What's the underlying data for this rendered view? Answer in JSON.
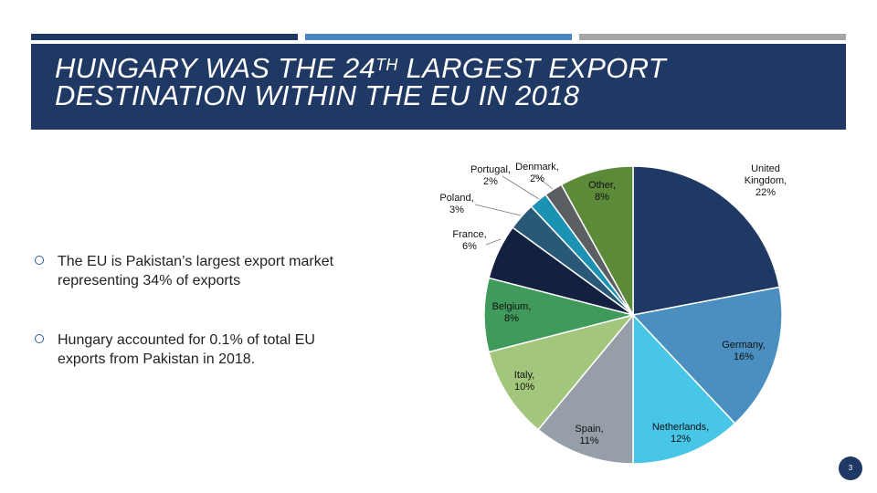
{
  "slide": {
    "title_part1": "HUNGARY WAS THE 24",
    "title_sup": "TH",
    "title_part2": " LARGEST EXPORT DESTINATION WITHIN THE EU IN 2018",
    "bullets": [
      "The EU is Pakistan’s largest export market representing 34% of exports",
      "Hungary accounted for 0.1% of total EU exports from Pakistan in 2018."
    ],
    "page_number": "3",
    "colors": {
      "band": "#1f3864",
      "bar1": "#1f3864",
      "bar2": "#4a86c5",
      "bar3": "#a6a6a6"
    }
  },
  "chart_data": {
    "type": "pie",
    "title": "",
    "start": "12 o'clock, clockwise",
    "slices": [
      {
        "label": "United Kingdom",
        "line1": "United",
        "line2": "Kingdom,",
        "line3": "22%",
        "value": 22,
        "color": "#1f3864",
        "label_color": "#111111"
      },
      {
        "label": "Germany",
        "line1": "Germany,",
        "line2": "16%",
        "value": 16,
        "color": "#4a8fbf",
        "label_color": "#111111"
      },
      {
        "label": "Netherlands",
        "line1": "Netherlands,",
        "line2": "12%",
        "value": 12,
        "color": "#47c6e8",
        "label_color": "#111111"
      },
      {
        "label": "Spain",
        "line1": "Spain,",
        "line2": "11%",
        "value": 11,
        "color": "#969ea8",
        "label_color": "#111111"
      },
      {
        "label": "Italy",
        "line1": "Italy,",
        "line2": "10%",
        "value": 10,
        "color": "#a2c77c",
        "label_color": "#111111"
      },
      {
        "label": "Belgium",
        "line1": "Belgium,",
        "line2": "8%",
        "value": 8,
        "color": "#3f9a5c",
        "label_color": "#111111"
      },
      {
        "label": "France",
        "line1": "France,",
        "line2": "6%",
        "value": 6,
        "color": "#14203f",
        "label_color": "#111111"
      },
      {
        "label": "Poland",
        "line1": "Poland,",
        "line2": "3%",
        "value": 3,
        "color": "#2a5877",
        "label_color": "#111111"
      },
      {
        "label": "Portugal",
        "line1": "Portugal,",
        "line2": "2%",
        "value": 2,
        "color": "#1c92b3",
        "label_color": "#111111"
      },
      {
        "label": "Denmark",
        "line1": "Denmark,",
        "line2": "2%",
        "value": 2,
        "color": "#5b5f63",
        "label_color": "#111111"
      },
      {
        "label": "Other",
        "line1": "Other,",
        "line2": "8%",
        "value": 8,
        "color": "#5d8a39",
        "label_color": "#c0392b"
      }
    ]
  }
}
